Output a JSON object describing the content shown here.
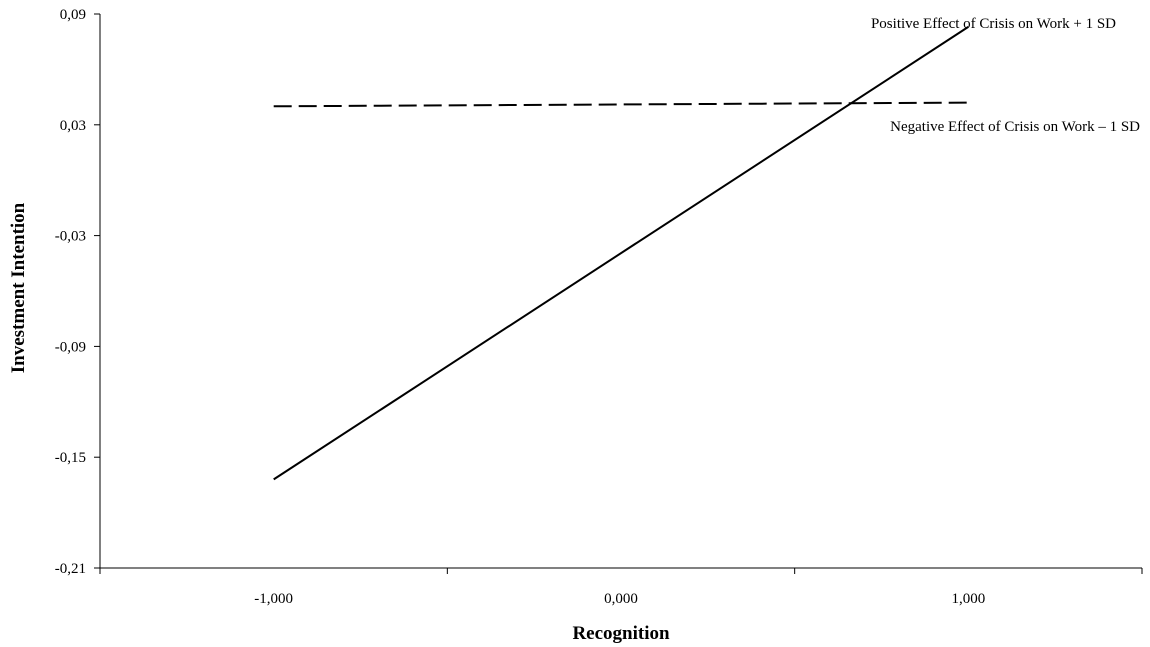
{
  "chart_data": {
    "type": "line",
    "xlabel": "Recognition",
    "ylabel": "Investment Intention",
    "x_tick_labels": [
      "-1,000",
      "0,000",
      "1,000"
    ],
    "x_tick_values": [
      -1,
      0,
      1
    ],
    "y_tick_labels": [
      "0,09",
      "0,03",
      "-0,03",
      "-0,09",
      "-0,15",
      "-0,21"
    ],
    "y_tick_values": [
      0.09,
      0.03,
      -0.03,
      -0.09,
      -0.15,
      -0.21
    ],
    "xlim": [
      -1.5,
      1.5
    ],
    "ylim": [
      -0.21,
      0.09
    ],
    "grid": false,
    "legend": "none",
    "series": [
      {
        "name": "Positive Effect of Crisis on Work + 1 SD",
        "style": "solid",
        "color": "#000000",
        "x": [
          -1,
          1
        ],
        "y": [
          -0.162,
          0.083
        ]
      },
      {
        "name": "Negative Effect of Crisis on Work – 1 SD",
        "style": "dashed",
        "color": "#000000",
        "x": [
          -1,
          1
        ],
        "y": [
          0.04,
          0.042
        ]
      }
    ]
  }
}
